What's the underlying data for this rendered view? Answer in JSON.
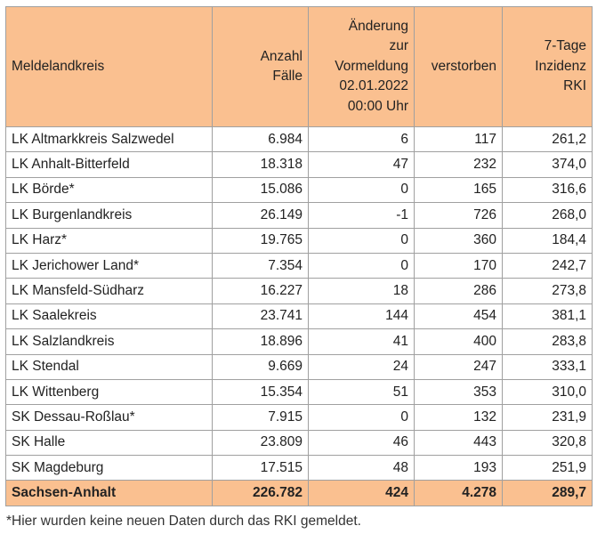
{
  "colors": {
    "header_background": "#fac090",
    "total_background": "#fac090",
    "border": "#a0a0a0"
  },
  "headers": [
    [
      "Meldelandkreis"
    ],
    [
      "Anzahl",
      "Fälle"
    ],
    [
      "Änderung",
      "zur",
      "Vormeldung",
      "02.01.2022",
      "00:00 Uhr"
    ],
    [
      "verstorben"
    ],
    [
      "7-Tage",
      "Inzidenz",
      "RKI"
    ]
  ],
  "rows": [
    [
      "LK Altmarkkreis Salzwedel",
      "6.984",
      "6",
      "117",
      "261,2"
    ],
    [
      "LK Anhalt-Bitterfeld",
      "18.318",
      "47",
      "232",
      "374,0"
    ],
    [
      "LK Börde*",
      "15.086",
      "0",
      "165",
      "316,6"
    ],
    [
      "LK Burgenlandkreis",
      "26.149",
      "-1",
      "726",
      "268,0"
    ],
    [
      "LK Harz*",
      "19.765",
      "0",
      "360",
      "184,4"
    ],
    [
      "LK Jerichower Land*",
      "7.354",
      "0",
      "170",
      "242,7"
    ],
    [
      "LK Mansfeld-Südharz",
      "16.227",
      "18",
      "286",
      "273,8"
    ],
    [
      "LK Saalekreis",
      "23.741",
      "144",
      "454",
      "381,1"
    ],
    [
      "LK Salzlandkreis",
      "18.896",
      "41",
      "400",
      "283,8"
    ],
    [
      "LK Stendal",
      "9.669",
      "24",
      "247",
      "333,1"
    ],
    [
      "LK Wittenberg",
      "15.354",
      "51",
      "353",
      "310,0"
    ],
    [
      "SK Dessau-Roßlau*",
      "7.915",
      "0",
      "132",
      "231,9"
    ],
    [
      "SK Halle",
      "23.809",
      "46",
      "443",
      "320,8"
    ],
    [
      "SK Magdeburg",
      "17.515",
      "48",
      "193",
      "251,9"
    ]
  ],
  "total": [
    "Sachsen-Anhalt",
    "226.782",
    "424",
    "4.278",
    "289,7"
  ],
  "footnote": "*Hier wurden keine neuen Daten durch das RKI gemeldet."
}
